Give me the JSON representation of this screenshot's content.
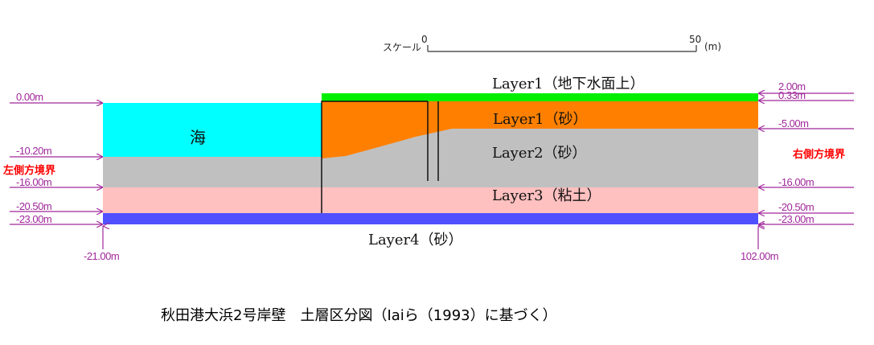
{
  "colors": {
    "sea": "#00ffff",
    "layer1_above_water": "#00ee00",
    "layer1_sand": "#ff8000",
    "layer2_sand": "#c0c0c0",
    "layer3_clay": "#ffc0c0",
    "layer4_sand": "#5050ff",
    "level_marker": "#a0289b",
    "boundary_label": "#ff0000"
  },
  "scale": {
    "label": "スケール",
    "start": "0",
    "end": "50",
    "unit": "(m)"
  },
  "sea_label": "海",
  "layers": {
    "layer1_above": "Layer1（地下水面上）",
    "layer1_sand": "Layer1（砂）",
    "layer2": "Layer2（砂）",
    "layer3": "Layer3（粘土）",
    "layer4": "Layer4（砂）"
  },
  "left_levels": [
    "0.00m",
    "-10.20m",
    "-16.00m",
    "-20.50m",
    "-23.00m"
  ],
  "right_levels": [
    "2.00m",
    "0.33m",
    "-5.00m",
    "-16.00m",
    "-20.50m",
    "-23.00m"
  ],
  "left_boundary": "左側方境界",
  "right_boundary": "右側方境界",
  "x_left": "-21.00m",
  "x_right": "102.00m",
  "caption": "秋田港大浜2号岸壁　土層区分図（Iaiら（1993）に基づく）"
}
